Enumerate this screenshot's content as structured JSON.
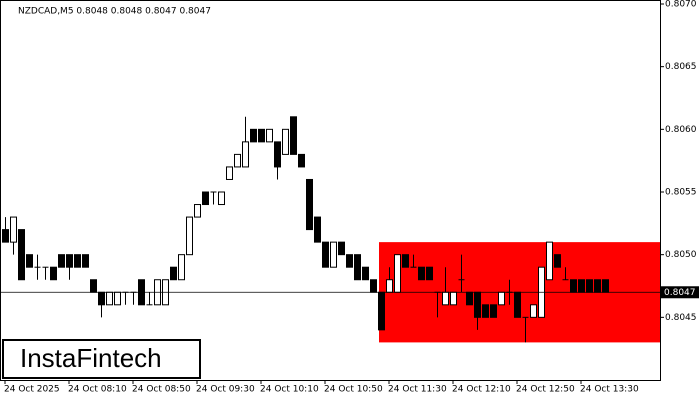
{
  "chart_data": {
    "type": "candlestick",
    "title": "NZDCAD,M5  0.8048 0.8048 0.8047 0.8047",
    "logo": "InstaFintech",
    "categories": [
      "24 Oct 2025",
      null,
      null,
      null,
      null,
      null,
      null,
      null,
      "24 Oct 08:10",
      null,
      null,
      null,
      null,
      null,
      null,
      null,
      "24 Oct 08:50",
      null,
      null,
      null,
      null,
      null,
      null,
      null,
      "24 Oct 09:30",
      null,
      null,
      null,
      null,
      null,
      null,
      null,
      "24 Oct 10:10",
      null,
      null,
      null,
      null,
      null,
      null,
      null,
      "24 Oct 10:50",
      null,
      null,
      null,
      null,
      null,
      null,
      null,
      "24 Oct 11:30",
      null,
      null,
      null,
      null,
      null,
      null,
      null,
      "24 Oct 12:10",
      null,
      null,
      null,
      null,
      null,
      null,
      null,
      "24 Oct 12:50",
      null,
      null,
      null,
      null,
      null,
      null,
      null,
      "24 Oct 13:30",
      null,
      null,
      null
    ],
    "open": [
      0.8052,
      0.8051,
      0.8052,
      0.805,
      0.8049,
      0.8049,
      0.8049,
      0.805,
      0.805,
      0.805,
      0.805,
      0.8048,
      0.8047,
      0.8046,
      0.8046,
      0.8047,
      0.8047,
      0.8048,
      0.8046,
      0.8046,
      0.8046,
      0.8049,
      0.8048,
      0.805,
      0.8053,
      0.8055,
      0.8055,
      0.8054,
      0.8056,
      0.8057,
      0.8057,
      0.806,
      0.806,
      0.8059,
      0.8059,
      0.8058,
      0.8061,
      0.8058,
      0.8056,
      0.8053,
      0.8051,
      0.8049,
      0.8051,
      0.805,
      0.805,
      0.8049,
      0.8048,
      0.8047,
      0.8047,
      0.8047,
      0.805,
      0.8049,
      0.8049,
      0.8049,
      0.8047,
      0.8046,
      0.8046,
      0.8048,
      0.8047,
      0.8047,
      0.8046,
      0.8046,
      0.8046,
      0.8047,
      0.8047,
      0.8045,
      0.8045,
      0.8045,
      0.8048,
      0.805,
      0.8048,
      0.8048,
      0.8048,
      0.8048,
      0.8048,
      0.8048
    ],
    "high": [
      0.8053,
      0.8053,
      0.8052,
      0.805,
      0.805,
      0.8049,
      0.8049,
      0.805,
      0.805,
      0.805,
      0.805,
      0.8048,
      0.8047,
      0.8047,
      0.8047,
      0.8047,
      0.8047,
      0.8048,
      0.8047,
      0.8048,
      0.8048,
      0.8049,
      0.805,
      0.8053,
      0.8054,
      0.8055,
      0.8055,
      0.8055,
      0.8057,
      0.8058,
      0.8061,
      0.806,
      0.806,
      0.806,
      0.8059,
      0.806,
      0.8061,
      0.8058,
      0.8056,
      0.8053,
      0.8051,
      0.8051,
      0.8051,
      0.805,
      0.805,
      0.8049,
      0.8048,
      0.8047,
      0.8049,
      0.805,
      0.805,
      0.805,
      0.8049,
      0.8049,
      0.8047,
      0.8049,
      0.8047,
      0.805,
      0.8047,
      0.8047,
      0.8046,
      0.8046,
      0.8047,
      0.8048,
      0.8047,
      0.8045,
      0.8046,
      0.8049,
      0.8051,
      0.805,
      0.8049,
      0.8048,
      0.8048,
      0.8048,
      0.8048,
      0.8048
    ],
    "low": [
      0.8051,
      0.805,
      0.8048,
      0.8049,
      0.8048,
      0.8048,
      0.8048,
      0.8049,
      0.8048,
      0.8049,
      0.8049,
      0.8047,
      0.8045,
      0.8046,
      0.8046,
      0.8046,
      0.8046,
      0.8046,
      0.8046,
      0.8046,
      0.8046,
      0.8048,
      0.8048,
      0.805,
      0.8053,
      0.8054,
      0.8054,
      0.8054,
      0.8056,
      0.8057,
      0.8057,
      0.8059,
      0.8059,
      0.8059,
      0.8056,
      0.8058,
      0.8058,
      0.8057,
      0.8052,
      0.8051,
      0.8049,
      0.8049,
      0.805,
      0.8049,
      0.8048,
      0.8048,
      0.8047,
      0.8044,
      0.8047,
      0.8047,
      0.8049,
      0.8049,
      0.8048,
      0.8048,
      0.8045,
      0.8046,
      0.8046,
      0.8047,
      0.8046,
      0.8044,
      0.8045,
      0.8045,
      0.8046,
      0.8046,
      0.8045,
      0.8043,
      0.8045,
      0.8045,
      0.8048,
      0.8049,
      0.8048,
      0.8047,
      0.8047,
      0.8047,
      0.8047,
      0.8047
    ],
    "close": [
      0.8051,
      0.8053,
      0.8048,
      0.8049,
      0.8049,
      0.8049,
      0.8048,
      0.8049,
      0.8049,
      0.8049,
      0.8049,
      0.8047,
      0.8046,
      0.8047,
      0.8047,
      0.8047,
      0.8047,
      0.8046,
      0.8046,
      0.8048,
      0.8048,
      0.8048,
      0.805,
      0.8053,
      0.8054,
      0.8054,
      0.8055,
      0.8055,
      0.8057,
      0.8058,
      0.8059,
      0.8059,
      0.8059,
      0.806,
      0.8057,
      0.806,
      0.8058,
      0.8057,
      0.8052,
      0.8051,
      0.8049,
      0.8051,
      0.805,
      0.8049,
      0.8048,
      0.8048,
      0.8047,
      0.8044,
      0.8048,
      0.805,
      0.8049,
      0.8049,
      0.8048,
      0.8048,
      0.8047,
      0.8047,
      0.8047,
      0.8048,
      0.8046,
      0.8045,
      0.8045,
      0.8045,
      0.8047,
      0.8047,
      0.8045,
      0.8045,
      0.8046,
      0.8049,
      0.8051,
      0.8049,
      0.8048,
      0.8047,
      0.8047,
      0.8047,
      0.8047,
      0.8047
    ],
    "last": 0.8047,
    "zone": {
      "ylim": [
        0.8043,
        0.8051
      ],
      "color": "#ff0000"
    },
    "ylim": [
      0.804,
      0.807
    ],
    "yticks": [
      0.8045,
      {
        "value": 0.805,
        "label": "0.8050"
      },
      0.8055,
      {
        "value": 0.806,
        "label": "0.8060"
      },
      0.8065,
      {
        "value": 0.807,
        "label": "0.8070"
      }
    ]
  }
}
